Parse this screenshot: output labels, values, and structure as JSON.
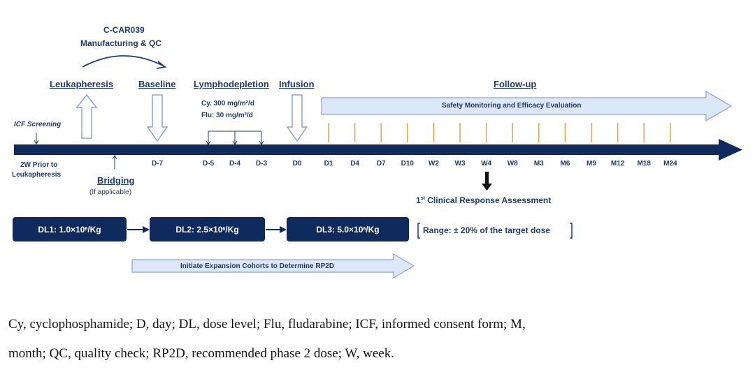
{
  "manufacturing": {
    "line1": "C-CAR039",
    "line2": "Manufacturing & QC"
  },
  "phases": {
    "leukapheresis": "Leukapheresis",
    "baseline": "Baseline",
    "lymphodepletion": "Lymphodepletion",
    "infusion": "Infusion",
    "follow_up": "Follow-up"
  },
  "lymphodepletion_doses": {
    "cy": "Cy. 300 mg/m²/d",
    "flu": "Flu: 30 mg/m²/d"
  },
  "icf_screening": "ICF Screening",
  "follow_up_banner": "Safety Monitoring and Efficacy Evaluation",
  "timeline_start": {
    "line1": "2W Prior to",
    "line2": "Leukapheresis"
  },
  "bridging": {
    "label": "Bridging",
    "note": "(If applicable)"
  },
  "ticks": {
    "d_minus_7": "D-7",
    "d_minus_5": "D-5",
    "d_minus_4": "D-4",
    "d_minus_3": "D-3",
    "d0": "D0",
    "followup": [
      "D1",
      "D4",
      "D7",
      "D10",
      "W2",
      "W3",
      "W4",
      "W8",
      "M3",
      "M6",
      "M9",
      "M12",
      "M18",
      "M24"
    ]
  },
  "response_assessment": {
    "sup": "st",
    "prefix": "1",
    "text": " Clinical Response Assessment"
  },
  "dose_levels": {
    "dl1": {
      "prefix": "DL1: 1.0×10",
      "exp": "6",
      "unit": "/Kg"
    },
    "dl2": {
      "prefix": "DL2: 2.5×10",
      "exp": "6",
      "unit": "/Kg"
    },
    "dl3": {
      "prefix": "DL3: 5.0×10",
      "exp": "6",
      "unit": "/Kg"
    }
  },
  "range_note": "Range: ± 20% of the target dose",
  "expansion_banner": "Initiate Expansion Cohorts to Determine RP2D",
  "caption": {
    "line1": "Cy, cyclophosphamide; D, day; DL, dose level; Flu, fludarabine; ICF, informed consent form; M,",
    "line2": "month; QC, quality check; RP2D, recommended phase 2 dose; W, week."
  },
  "colors": {
    "navy": "#0f2a5c",
    "light_arrow": "#dce8f7",
    "gold_tick": "#e0a640"
  }
}
